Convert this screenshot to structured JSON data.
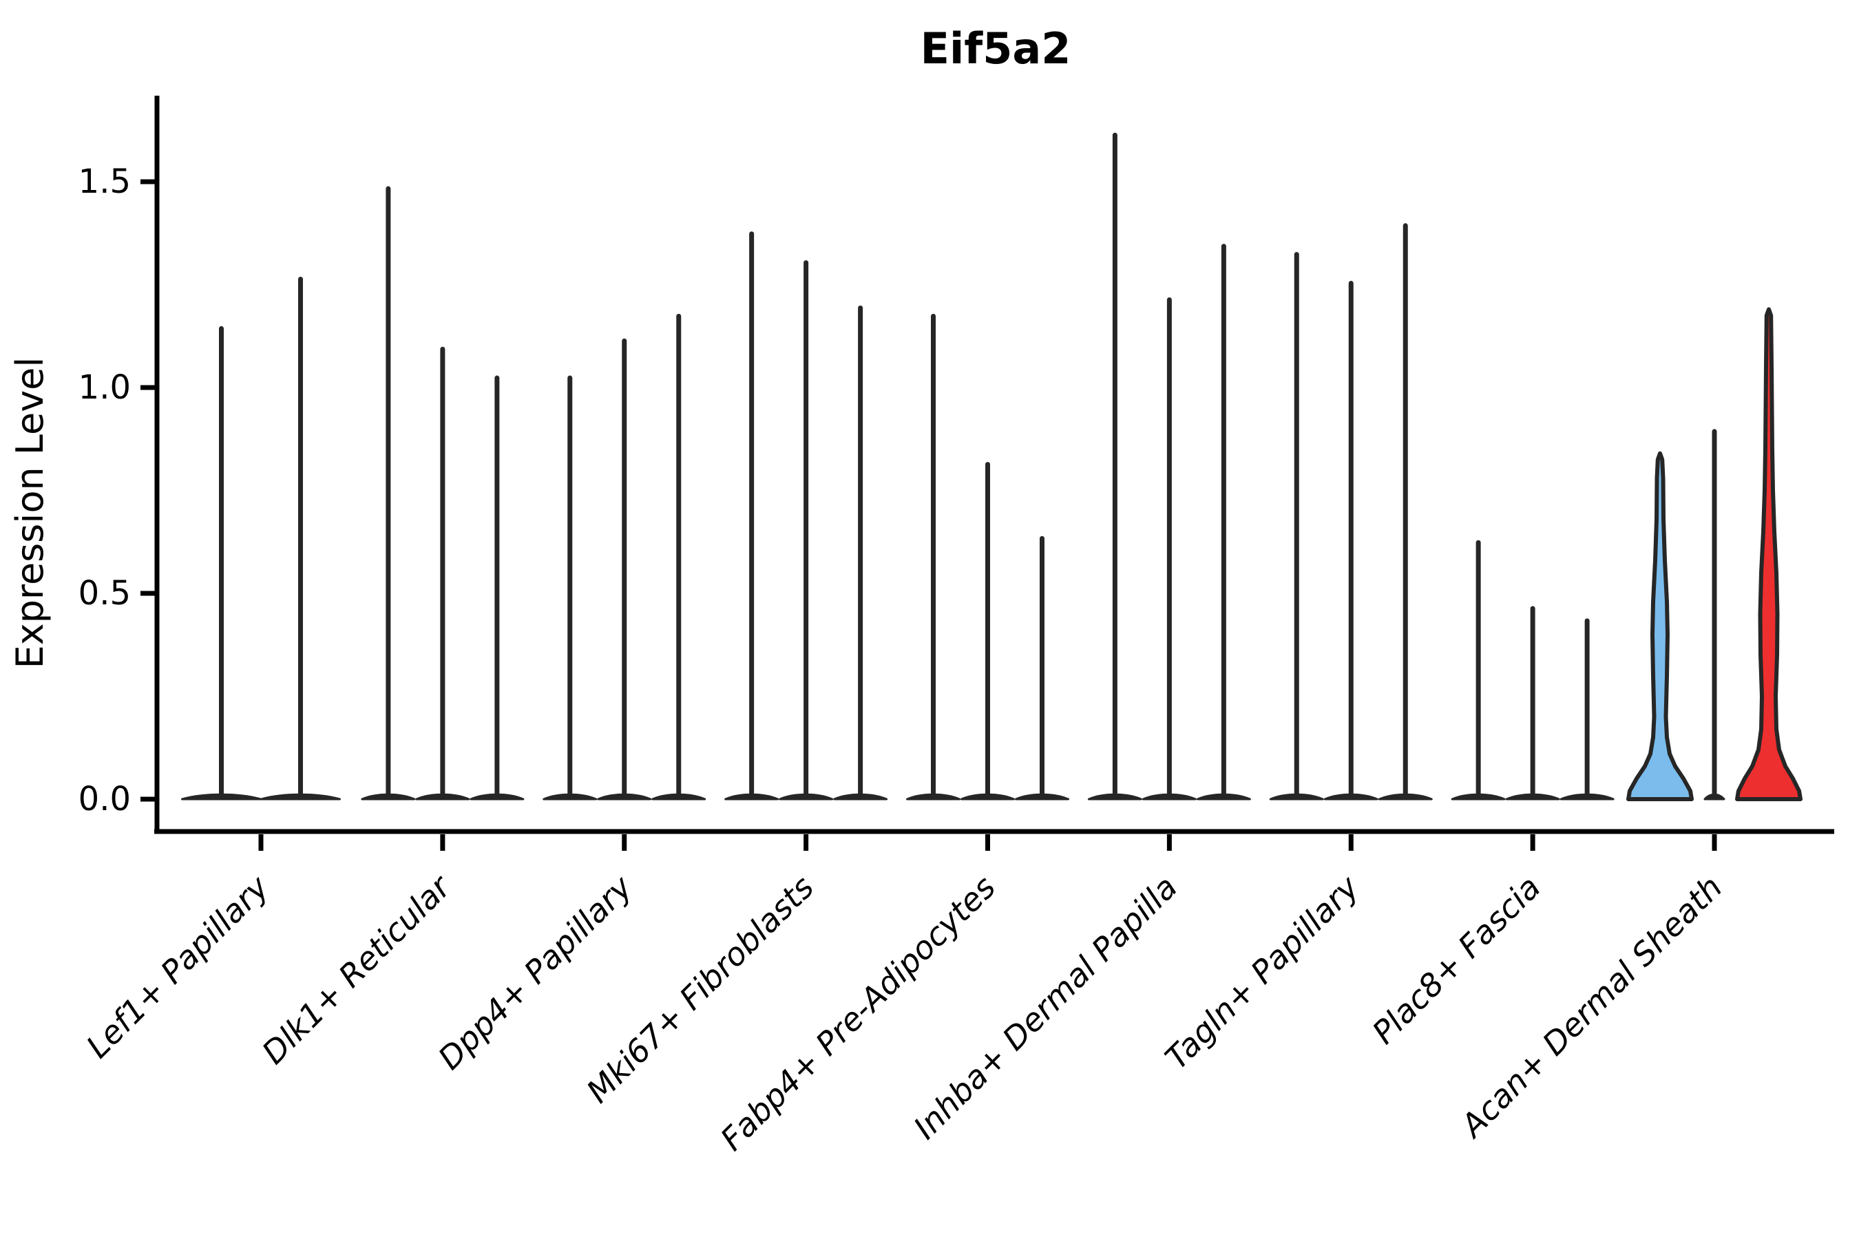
{
  "title": "Eif5a2",
  "chart_data": {
    "type": "violin",
    "title": "Eif5a2",
    "xlabel": "",
    "ylabel": "Expression Level",
    "yticks": [
      "0.0",
      "0.5",
      "1.0",
      "1.5"
    ],
    "ylim": [
      -0.08,
      1.72
    ],
    "grid": false,
    "legend_position": "none",
    "categories": [
      "Lef1+ Papillary",
      "Dlk1+ Reticular",
      "Dpp4+ Papillary",
      "Mki67+ Fibroblasts",
      "Fabp4+ Pre-Adipocytes",
      "Inhba+ Dermal Papilla",
      "Tagln+ Papillary",
      "Plac8+ Fascia",
      "Acan+ Dermal Sheath"
    ],
    "groups": [
      {
        "category": "Lef1+ Papillary",
        "violins": [
          {
            "max": 1.15
          },
          {
            "max": 1.27
          }
        ]
      },
      {
        "category": "Dlk1+ Reticular",
        "violins": [
          {
            "max": 1.49
          },
          {
            "max": 1.1
          },
          {
            "max": 1.03
          }
        ]
      },
      {
        "category": "Dpp4+ Papillary",
        "violins": [
          {
            "max": 1.03
          },
          {
            "max": 1.12
          },
          {
            "max": 1.18
          }
        ]
      },
      {
        "category": "Mki67+ Fibroblasts",
        "violins": [
          {
            "max": 1.38
          },
          {
            "max": 1.31
          },
          {
            "max": 1.2
          }
        ]
      },
      {
        "category": "Fabp4+ Pre-Adipocytes",
        "violins": [
          {
            "max": 1.18
          },
          {
            "max": 0.82
          },
          {
            "max": 0.64
          }
        ]
      },
      {
        "category": "Inhba+ Dermal Papilla",
        "violins": [
          {
            "max": 1.62
          },
          {
            "max": 1.22
          },
          {
            "max": 1.35
          }
        ]
      },
      {
        "category": "Tagln+ Papillary",
        "violins": [
          {
            "max": 1.33
          },
          {
            "max": 1.26
          },
          {
            "max": 1.4
          }
        ]
      },
      {
        "category": "Plac8+ Fascia",
        "violins": [
          {
            "max": 0.63
          },
          {
            "max": 0.47
          },
          {
            "max": 0.44
          }
        ]
      },
      {
        "category": "Acan+ Dermal Sheath",
        "violins": [
          {
            "max": 0.84,
            "fill": "blue"
          },
          {
            "max": 0.9
          },
          {
            "max": 1.19,
            "fill": "red"
          }
        ]
      }
    ],
    "colors": {
      "violin_outline": "#262626",
      "blue_fill": "#7bbcec",
      "red_fill": "#ee2f2f",
      "axis": "#000000"
    }
  }
}
